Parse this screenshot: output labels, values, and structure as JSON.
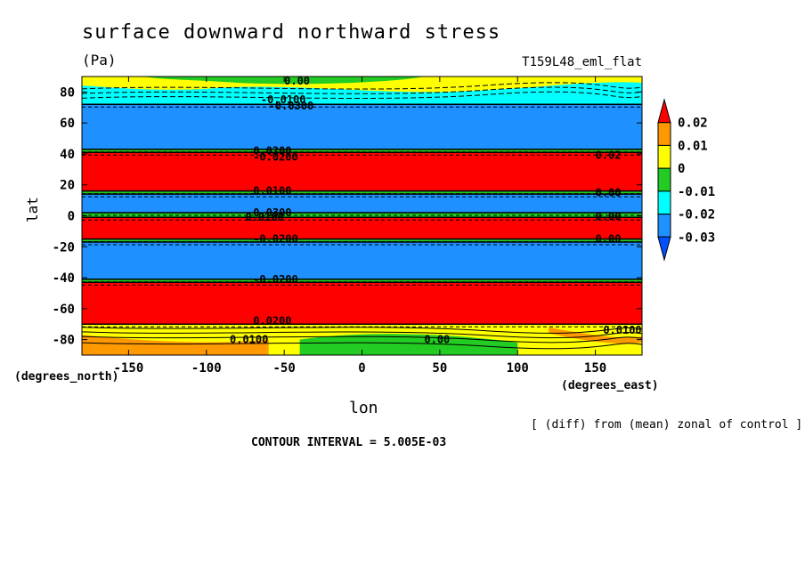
{
  "chart_data": {
    "type": "heatmap",
    "title": "surface downward northward stress",
    "units": "(Pa)",
    "run_label": "T159L48_eml_flat",
    "xlabel": "lon",
    "ylabel": "lat",
    "x_units": "(degrees_east)",
    "y_units": "(degrees_north)",
    "xlim": [
      -180,
      180
    ],
    "ylim": [
      -90,
      90
    ],
    "x_ticks": [
      -150,
      -100,
      -50,
      0,
      50,
      100,
      150
    ],
    "y_ticks": [
      -80,
      -60,
      -40,
      -20,
      0,
      20,
      40,
      60,
      80
    ],
    "diff_note": "[ (diff) from (mean) zonal of control ]",
    "contour_interval": "CONTOUR INTERVAL = 5.005E-03",
    "colorbar": {
      "labels": [
        "0.02",
        "0.01",
        "0",
        "-0.01",
        "-0.02",
        "-0.03"
      ],
      "colors": [
        "#ff0000",
        "#ff9900",
        "#ffff00",
        "#22cc22",
        "#00ffff",
        "#1e90ff",
        "#0050ff"
      ]
    },
    "bands": [
      {
        "lat_min": 72,
        "lat_max": 90,
        "value": -0.015,
        "color": "#00ffff"
      },
      {
        "lat_min": 43,
        "lat_max": 72,
        "value": -0.035,
        "color": "#1e90ff"
      },
      {
        "lat_min": 16,
        "lat_max": 41,
        "value": 0.025,
        "color": "#ff0000"
      },
      {
        "lat_min": 2,
        "lat_max": 14,
        "value": -0.035,
        "color": "#1e90ff"
      },
      {
        "lat_min": -15,
        "lat_max": -1,
        "value": 0.025,
        "color": "#ff0000"
      },
      {
        "lat_min": -41,
        "lat_max": -17,
        "value": -0.035,
        "color": "#1e90ff"
      },
      {
        "lat_min": -70,
        "lat_max": -43,
        "value": 0.025,
        "color": "#ff0000"
      },
      {
        "lat_min": -90,
        "lat_max": -70,
        "value": 0.005,
        "color": "#ffff00"
      }
    ],
    "contour_labels": [
      {
        "text": "0.00",
        "lon": -50,
        "lat": 87
      },
      {
        "text": "-0.0100",
        "lon": -65,
        "lat": 75
      },
      {
        "text": "-0.0300",
        "lon": -60,
        "lat": 71
      },
      {
        "text": "0.0200",
        "lon": -70,
        "lat": 42
      },
      {
        "text": "-0.0200",
        "lon": -70,
        "lat": 38
      },
      {
        "text": "0.02",
        "lon": 150,
        "lat": 39
      },
      {
        "text": "0.0100",
        "lon": -70,
        "lat": 16
      },
      {
        "text": "0.00",
        "lon": 150,
        "lat": 15
      },
      {
        "text": "0.0300",
        "lon": -70,
        "lat": 2
      },
      {
        "text": "0.0100",
        "lon": -75,
        "lat": -1
      },
      {
        "text": "0.00",
        "lon": 150,
        "lat": -0.5
      },
      {
        "text": "-0.0200",
        "lon": -70,
        "lat": -15
      },
      {
        "text": "0.00",
        "lon": 150,
        "lat": -15
      },
      {
        "text": "-0.0200",
        "lon": -70,
        "lat": -41
      },
      {
        "text": "0.0200",
        "lon": -70,
        "lat": -68
      },
      {
        "text": "0.0100",
        "lon": -85,
        "lat": -80
      },
      {
        "text": "0.00",
        "lon": 40,
        "lat": -80
      },
      {
        "text": "0.0100",
        "lon": 155,
        "lat": -74
      }
    ]
  }
}
